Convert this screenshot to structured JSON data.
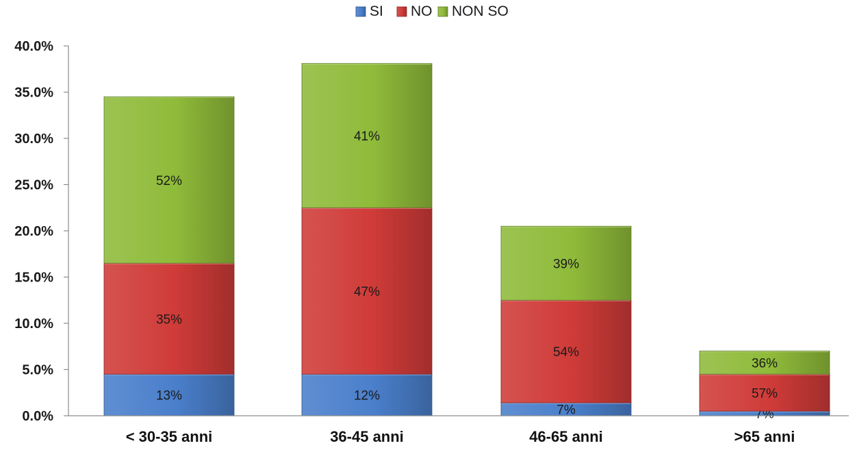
{
  "chart_data": {
    "type": "bar",
    "stacked": true,
    "title": "",
    "xlabel": "",
    "ylabel": "",
    "ylim": [
      0,
      40
    ],
    "y_ticks": [
      "0.0%",
      "5.0%",
      "10.0%",
      "15.0%",
      "20.0%",
      "25.0%",
      "30.0%",
      "35.0%",
      "40.0%"
    ],
    "y_tick_values": [
      0,
      5,
      10,
      15,
      20,
      25,
      30,
      35,
      40
    ],
    "grid": false,
    "legend_position": "top-center",
    "categories": [
      "< 30-35 anni",
      "36-45 anni",
      "46-65 anni",
      ">65 anni"
    ],
    "series": [
      {
        "name": "SI",
        "color": "#4a7fcb",
        "values": [
          4.5,
          4.5,
          1.4,
          0.5
        ],
        "labels": [
          "13%",
          "12%",
          "7%",
          "7%"
        ]
      },
      {
        "name": "NO",
        "color": "#cf3b38",
        "values": [
          12.0,
          18.0,
          11.1,
          4.0
        ],
        "labels": [
          "35%",
          "47%",
          "54%",
          "57%"
        ]
      },
      {
        "name": "NON SO",
        "color": "#8fbb3a",
        "values": [
          18.0,
          15.6,
          8.0,
          2.5
        ],
        "labels": [
          "52%",
          "41%",
          "39%",
          "36%"
        ]
      }
    ]
  }
}
